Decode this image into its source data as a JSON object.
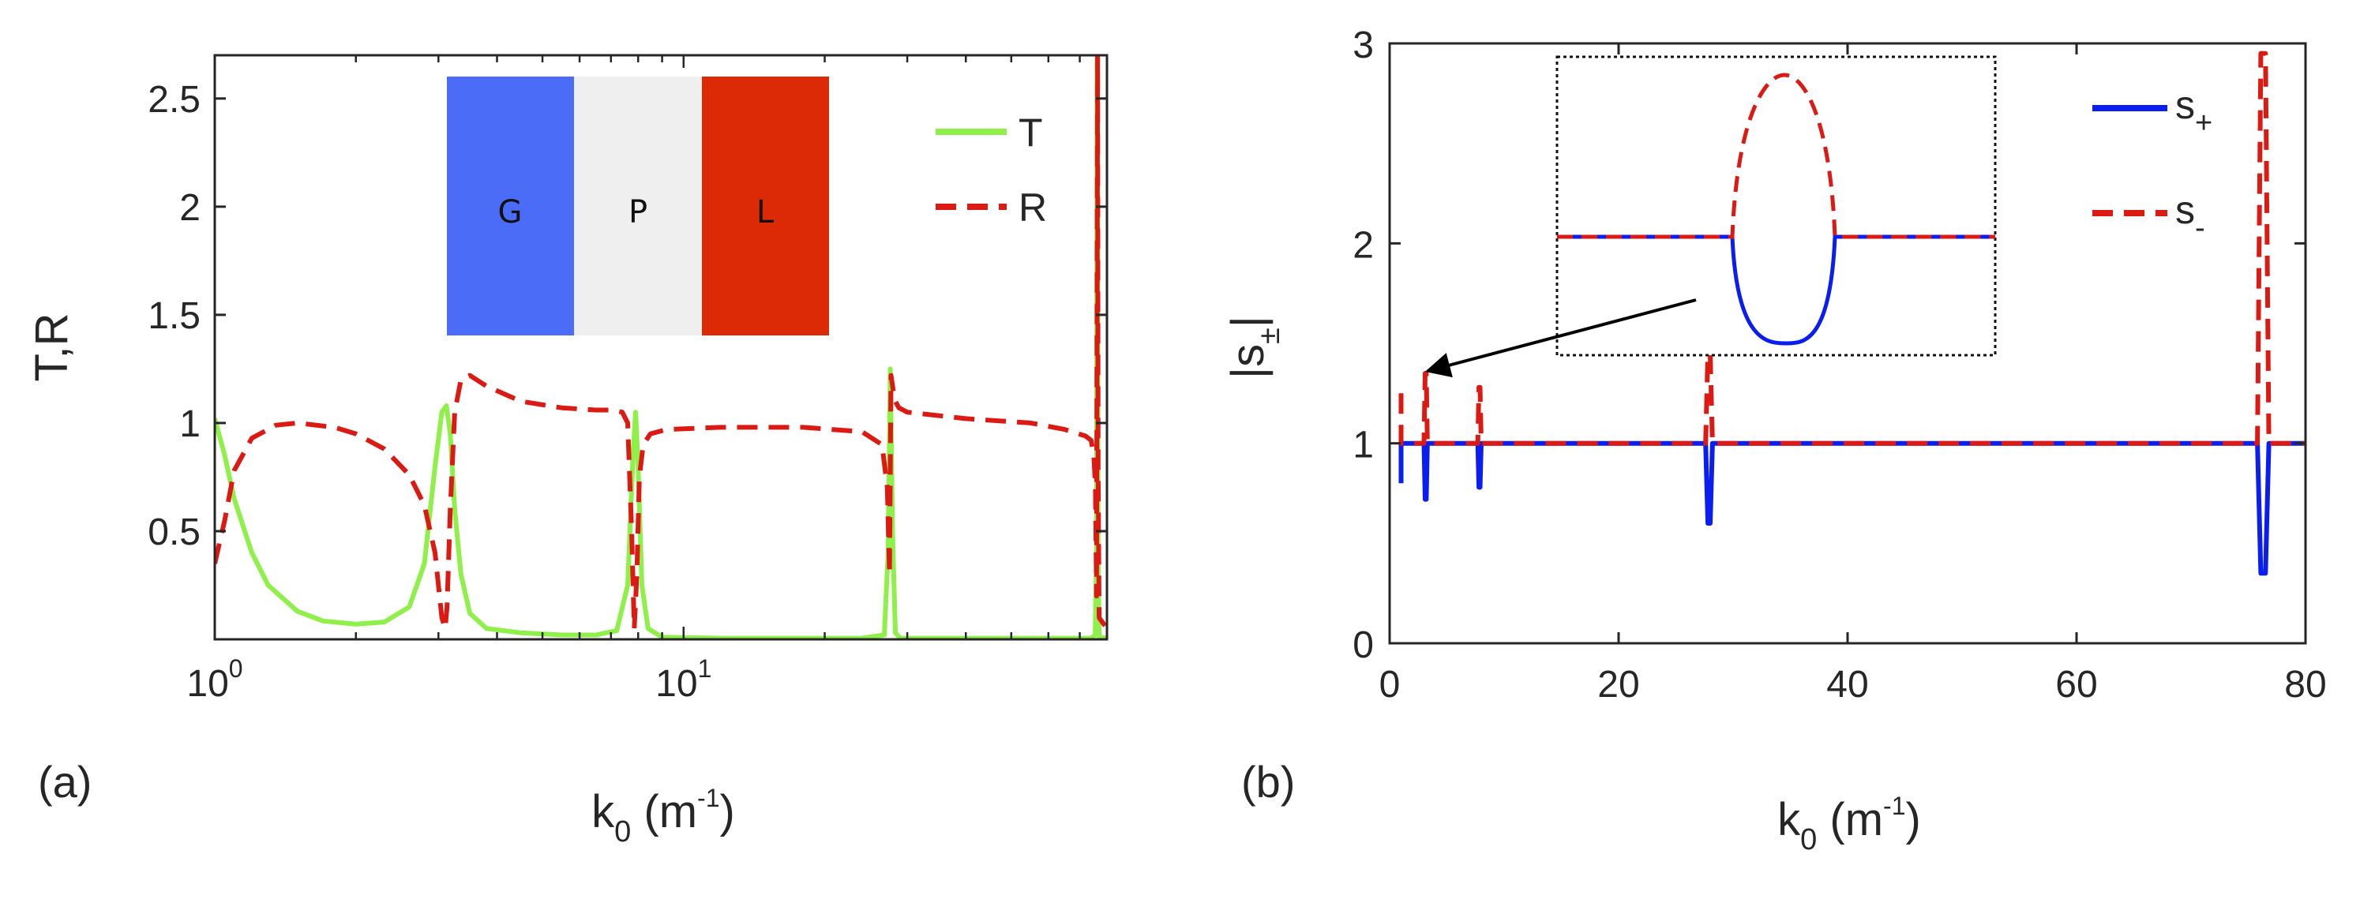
{
  "colors": {
    "T": "#8ef048",
    "R": "#dc1a14",
    "s_plus": "#0a1ef0",
    "s_minus": "#dc1a14",
    "layer_G": "#4a6cf7",
    "layer_P": "#efefef",
    "layer_L": "#dc2a06"
  },
  "chart_data": [
    {
      "panel_label": "(a)",
      "type": "line",
      "xscale": "log",
      "xlim": [
        1,
        80
      ],
      "ylim": [
        0,
        2.7
      ],
      "xlabel": {
        "base": "k",
        "sub": "0",
        "unit_open": " (m",
        "unit_sup": "-1",
        "unit_close": ")"
      },
      "ylabel": "T,R",
      "x_ticks": [
        {
          "value": 1,
          "base": "10",
          "exp": "0"
        },
        {
          "value": 10,
          "base": "10",
          "exp": "1"
        }
      ],
      "y_ticks": [
        {
          "value": 0.5,
          "label": "0.5"
        },
        {
          "value": 1,
          "label": "1"
        },
        {
          "value": 1.5,
          "label": "1.5"
        },
        {
          "value": 2,
          "label": "2"
        },
        {
          "value": 2.5,
          "label": "2.5"
        }
      ],
      "legend": {
        "placement": "top-right",
        "entries": [
          "T",
          "R"
        ]
      },
      "inset": {
        "type": "layers",
        "layers": [
          "G",
          "P",
          "L"
        ]
      },
      "series": [
        {
          "name": "T",
          "style": "solid",
          "x": [
            1.0,
            1.05,
            1.1,
            1.2,
            1.3,
            1.5,
            1.7,
            2.0,
            2.3,
            2.6,
            2.8,
            2.95,
            3.05,
            3.12,
            3.18,
            3.25,
            3.35,
            3.5,
            3.8,
            4.5,
            5.5,
            6.5,
            7.2,
            7.6,
            7.8,
            7.9,
            8.0,
            8.15,
            8.4,
            9,
            12,
            18,
            24,
            26.8,
            27.3,
            27.6,
            27.9,
            28.3,
            29,
            40,
            60,
            74,
            75.5,
            76,
            76.2,
            76.4,
            76.6,
            77,
            80
          ],
          "y": [
            1.02,
            0.85,
            0.65,
            0.4,
            0.25,
            0.13,
            0.085,
            0.07,
            0.08,
            0.15,
            0.35,
            0.8,
            1.05,
            1.08,
            0.95,
            0.6,
            0.3,
            0.12,
            0.05,
            0.03,
            0.02,
            0.02,
            0.04,
            0.25,
            0.85,
            1.05,
            0.8,
            0.25,
            0.05,
            0.01,
            0.005,
            0.005,
            0.005,
            0.02,
            0.4,
            1.25,
            0.5,
            0.03,
            0.005,
            0.005,
            0.005,
            0.005,
            0.02,
            0.4,
            2.7,
            2.7,
            0.4,
            0.01,
            0.005
          ]
        },
        {
          "name": "R",
          "style": "dashed",
          "x": [
            1.0,
            1.05,
            1.1,
            1.2,
            1.35,
            1.5,
            1.8,
            2.0,
            2.3,
            2.6,
            2.8,
            2.95,
            3.05,
            3.1,
            3.13,
            3.18,
            3.25,
            3.35,
            3.5,
            3.8,
            4.5,
            5.5,
            6.5,
            7.0,
            7.4,
            7.6,
            7.75,
            7.85,
            7.95,
            8.05,
            8.2,
            8.5,
            9.2,
            12,
            18,
            24,
            26.5,
            27.2,
            27.5,
            27.7,
            28.0,
            28.3,
            28.8,
            30,
            40,
            55,
            65,
            72,
            74,
            75,
            75.6,
            76,
            76.2,
            76.4,
            76.6,
            77,
            80
          ],
          "y": [
            0.35,
            0.55,
            0.78,
            0.93,
            0.99,
            1.0,
            0.98,
            0.95,
            0.88,
            0.76,
            0.62,
            0.4,
            0.1,
            0.05,
            0.15,
            0.6,
            1.05,
            1.2,
            1.22,
            1.17,
            1.1,
            1.07,
            1.06,
            1.06,
            1.05,
            1.0,
            0.5,
            0.05,
            0.3,
            0.75,
            0.9,
            0.95,
            0.97,
            0.98,
            0.98,
            0.96,
            0.9,
            0.7,
            0.3,
            1.22,
            1.15,
            1.1,
            1.07,
            1.05,
            1.02,
            1.0,
            0.97,
            0.94,
            0.92,
            0.85,
            0.7,
            0.2,
            1.5,
            2.7,
            0.8,
            0.1,
            0.05
          ]
        }
      ]
    },
    {
      "panel_label": "(b)",
      "type": "line",
      "xscale": "linear",
      "xlim": [
        0,
        80
      ],
      "ylim": [
        0,
        3
      ],
      "xlabel": {
        "base": "k",
        "sub": "0",
        "unit_open": " (m",
        "unit_sup": "-1",
        "unit_close": ")"
      },
      "ylabel": {
        "left": "|s",
        "sub": "±",
        "right": "|"
      },
      "x_ticks": [
        {
          "value": 0,
          "label": "0"
        },
        {
          "value": 20,
          "label": "20"
        },
        {
          "value": 40,
          "label": "40"
        },
        {
          "value": 60,
          "label": "60"
        },
        {
          "value": 80,
          "label": "80"
        }
      ],
      "y_ticks": [
        {
          "value": 0,
          "label": "0"
        },
        {
          "value": 1,
          "label": "1"
        },
        {
          "value": 2,
          "label": "2"
        },
        {
          "value": 3,
          "label": "3"
        }
      ],
      "legend": {
        "placement": "top-right",
        "entries": [
          {
            "base": "s",
            "sub": "+"
          },
          {
            "base": "s",
            "sub": "-"
          }
        ]
      },
      "inset": {
        "type": "zoom",
        "points_to_x": 3.2,
        "points_to_y": 1.3
      },
      "series": [
        {
          "name": "s+",
          "style": "solid",
          "x": [
            1.0,
            1.0,
            1.0,
            3.0,
            3.1,
            3.2,
            3.3,
            7.7,
            7.8,
            7.9,
            8.0,
            27.6,
            27.8,
            28.0,
            28.2,
            75.8,
            76.1,
            76.3,
            76.5,
            76.8,
            80
          ],
          "y": [
            0.8,
            1.0,
            1.0,
            1.0,
            0.72,
            0.72,
            1.0,
            1.0,
            0.78,
            0.78,
            1.0,
            1.0,
            0.6,
            0.6,
            1.0,
            1.0,
            0.35,
            0.35,
            0.35,
            1.0,
            1.0
          ]
        },
        {
          "name": "s-",
          "style": "dashed",
          "x": [
            1.0,
            1.0,
            1.0,
            3.0,
            3.1,
            3.2,
            3.3,
            7.7,
            7.8,
            7.9,
            8.0,
            27.6,
            27.8,
            28.0,
            28.2,
            75.8,
            76.1,
            76.3,
            76.5,
            76.8,
            80
          ],
          "y": [
            1.25,
            1.0,
            1.0,
            1.0,
            1.35,
            1.35,
            1.0,
            1.0,
            1.28,
            1.28,
            1.0,
            1.0,
            1.45,
            1.45,
            1.0,
            1.0,
            2.95,
            2.95,
            2.95,
            1.0,
            1.0
          ]
        }
      ]
    }
  ]
}
